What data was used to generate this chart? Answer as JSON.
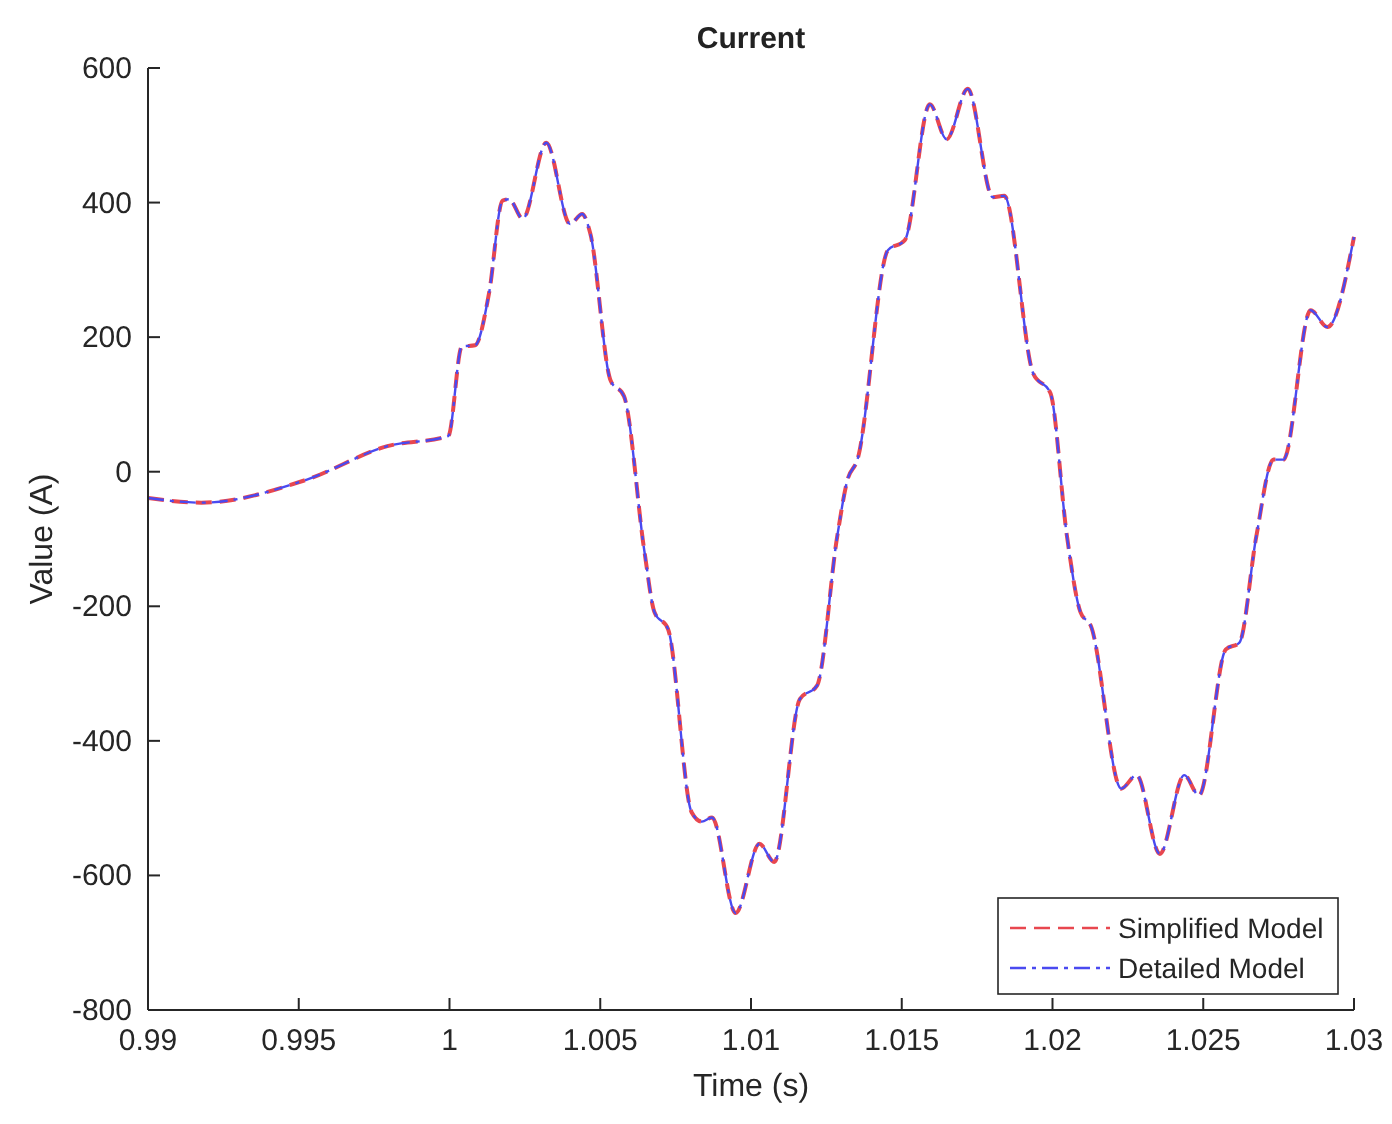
{
  "chart_data": {
    "type": "line",
    "title": "Current",
    "xlabel": "Time (s)",
    "ylabel": "Value (A)",
    "x": [
      0.99,
      0.99177,
      0.99525,
      0.99794,
      0.99996,
      1.00041,
      1.00085,
      1.00131,
      1.00176,
      1.00198,
      1.00243,
      1.00321,
      1.004,
      1.0044,
      1.00467,
      1.00534,
      1.00579,
      1.00647,
      1.0068,
      1.00725,
      1.00803,
      1.00837,
      1.00871,
      1.00949,
      1.01028,
      1.01077,
      1.01162,
      1.01219,
      1.01286,
      1.0132,
      1.01353,
      1.01454,
      1.0151,
      1.01593,
      1.01649,
      1.01719,
      1.01802,
      1.0184,
      1.01936,
      1.01993,
      1.02048,
      1.02093,
      1.02127,
      1.02228,
      1.02279,
      1.02356,
      1.02437,
      1.02486,
      1.02575,
      1.0262,
      1.02676,
      1.02733,
      1.02766,
      1.02856,
      1.02912,
      1.03
    ],
    "series": [
      {
        "name": "Simplified Model",
        "color": "#e8474f",
        "line_style": "dashed",
        "values": [
          -39,
          -46,
          -12,
          38,
          53,
          186,
          188,
          265,
          403,
          405,
          376,
          489,
          368,
          383,
          354,
          136,
          112,
          -120,
          -209,
          -234,
          -506,
          -520,
          -514,
          -656,
          -553,
          -580,
          -338,
          -318,
          -96,
          -12,
          18,
          329,
          344,
          546,
          494,
          569,
          408,
          410,
          146,
          117,
          -96,
          -209,
          -229,
          -471,
          -451,
          -568,
          -451,
          -481,
          -264,
          -254,
          -96,
          18,
          18,
          240,
          215,
          349
        ]
      },
      {
        "name": "Detailed Model",
        "color": "#4a4af0",
        "line_style": "dashdot",
        "values": [
          -39,
          -46,
          -12,
          38,
          53,
          186,
          188,
          265,
          403,
          405,
          376,
          489,
          368,
          383,
          354,
          136,
          112,
          -120,
          -209,
          -234,
          -506,
          -520,
          -514,
          -656,
          -553,
          -580,
          -338,
          -318,
          -96,
          -12,
          18,
          329,
          344,
          546,
          494,
          569,
          408,
          410,
          146,
          117,
          -96,
          -209,
          -229,
          -471,
          -451,
          -568,
          -451,
          -481,
          -264,
          -254,
          -96,
          18,
          18,
          240,
          215,
          349
        ]
      }
    ],
    "xlim": [
      0.99,
      1.03
    ],
    "xticks": [
      0.99,
      0.995,
      1,
      1.005,
      1.01,
      1.015,
      1.02,
      1.025,
      1.03
    ],
    "ylim": [
      -800,
      600
    ],
    "yticks": [
      -800,
      -600,
      -400,
      -200,
      0,
      200,
      400,
      600
    ],
    "legend": "bottom right",
    "grid": false
  }
}
